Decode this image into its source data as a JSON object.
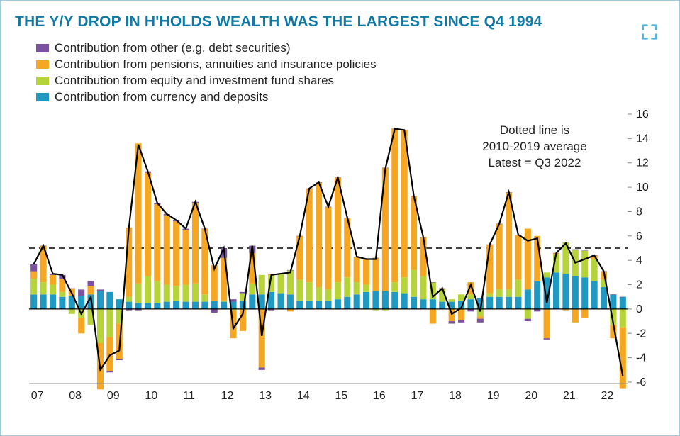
{
  "title": "THE Y/Y DROP IN H'HOLDS WEALTH WAS THE LARGEST SINCE Q4 1994",
  "note_line1": "Dotted line is",
  "note_line2": "2010-2019 average",
  "note_line3": "Latest = Q3 2022",
  "legend": {
    "other": {
      "label": "Contribution from other (e.g. debt securities)",
      "color": "#7a529f"
    },
    "pensions": {
      "label": "Contribution from pensions, annuities and insurance policies",
      "color": "#f5a623"
    },
    "equity": {
      "label": "Contribution from equity and investment fund shares",
      "color": "#b6d43a"
    },
    "currency": {
      "label": "Contribution from currency and deposits",
      "color": "#1f99c2"
    }
  },
  "chart": {
    "type": "stacked-bar-with-line",
    "background_color": "#ffffff",
    "border_color": "#9ecde0",
    "text_color": "#222222",
    "title_color": "#0f7aa6",
    "title_fontsize": 21,
    "axis_fontsize": 16,
    "line_color": "#000000",
    "line_width": 2.2,
    "ref_line_color": "#000000",
    "ref_line_dash": "8 6",
    "baseline_color": "#000000",
    "ylim": [
      -6,
      16
    ],
    "ytick_step": 2,
    "xlabels": [
      "07",
      "08",
      "09",
      "10",
      "11",
      "12",
      "13",
      "14",
      "15",
      "16",
      "17",
      "18",
      "19",
      "20",
      "21",
      "22"
    ],
    "ref_value": 5.0,
    "bar_width_ratio": 0.68,
    "periods": [
      "07Q1",
      "07Q2",
      "07Q3",
      "07Q4",
      "08Q1",
      "08Q2",
      "08Q3",
      "08Q4",
      "09Q1",
      "09Q2",
      "09Q3",
      "09Q4",
      "10Q1",
      "10Q2",
      "10Q3",
      "10Q4",
      "11Q1",
      "11Q2",
      "11Q3",
      "11Q4",
      "12Q1",
      "12Q2",
      "12Q3",
      "12Q4",
      "13Q1",
      "13Q2",
      "13Q3",
      "13Q4",
      "14Q1",
      "14Q2",
      "14Q3",
      "14Q4",
      "15Q1",
      "15Q2",
      "15Q3",
      "15Q4",
      "16Q1",
      "16Q2",
      "16Q3",
      "16Q4",
      "17Q1",
      "17Q2",
      "17Q3",
      "17Q4",
      "18Q1",
      "18Q2",
      "18Q3",
      "18Q4",
      "19Q1",
      "19Q2",
      "19Q3",
      "19Q4",
      "20Q1",
      "20Q2",
      "20Q3",
      "20Q4",
      "21Q1",
      "21Q2",
      "21Q3",
      "21Q4",
      "22Q1",
      "22Q2",
      "22Q3"
    ],
    "series": {
      "currency": [
        1.2,
        1.2,
        1.2,
        1.0,
        1.1,
        1.1,
        1.2,
        1.5,
        1.4,
        0.8,
        0.6,
        0.5,
        0.5,
        0.5,
        0.6,
        0.7,
        0.6,
        0.6,
        0.6,
        0.7,
        0.6,
        0.6,
        0.7,
        1.2,
        1.2,
        1.4,
        1.3,
        1.2,
        0.7,
        0.7,
        0.7,
        0.7,
        0.8,
        1.0,
        1.2,
        1.4,
        1.5,
        1.5,
        1.4,
        1.3,
        1.0,
        0.8,
        0.8,
        0.6,
        0.6,
        0.7,
        0.8,
        0.9,
        1.0,
        1.0,
        1.0,
        1.0,
        1.6,
        2.3,
        2.6,
        3.0,
        2.9,
        2.7,
        2.6,
        2.3,
        1.8,
        1.2,
        1.0
      ],
      "equity": [
        1.3,
        1.0,
        0.8,
        0.4,
        -0.4,
        -0.7,
        -1.3,
        -2.8,
        -2.3,
        -1.2,
        0.4,
        1.6,
        2.2,
        1.8,
        1.4,
        1.2,
        1.4,
        1.5,
        0.6,
        0.0,
        0.1,
        -0.1,
        0.6,
        0.9,
        1.6,
        1.4,
        1.6,
        2.0,
        1.7,
        1.5,
        1.1,
        0.9,
        1.4,
        1.6,
        1.0,
        0.6,
        -0.1,
        -0.1,
        0.8,
        1.3,
        2.2,
        1.9,
        1.4,
        1.0,
        0.2,
        0.5,
        0.4,
        -0.6,
        0.3,
        0.6,
        0.6,
        1.4,
        -0.8,
        0.0,
        0.4,
        1.5,
        2.6,
        2.2,
        2.2,
        1.8,
        0.6,
        -1.3,
        -1.5
      ],
      "pensions": [
        0.6,
        3.0,
        0.8,
        1.1,
        0.6,
        -1.3,
        0.7,
        -3.8,
        -2.8,
        -2.9,
        5.7,
        11.5,
        8.5,
        6.3,
        5.7,
        5.3,
        4.5,
        6.6,
        5.4,
        2.9,
        3.5,
        -2.3,
        -1.8,
        2.5,
        -4.8,
        0.1,
        0.0,
        -0.2,
        3.6,
        7.7,
        8.6,
        6.8,
        8.6,
        4.9,
        2.1,
        2.1,
        2.7,
        10.1,
        12.6,
        12.1,
        6.1,
        3.2,
        -1.2,
        0.1,
        -1.0,
        -0.9,
        1.0,
        -0.2,
        4.0,
        5.4,
        8.0,
        3.7,
        5.0,
        3.7,
        -2.4,
        0.1,
        -0.1,
        -1.1,
        -0.7,
        0.3,
        0.7,
        -1.1,
        -5.0
      ],
      "other": [
        0.6,
        0.0,
        0.1,
        0.3,
        0.0,
        0.5,
        0.4,
        0.1,
        -0.1,
        -0.1,
        -0.1,
        -0.1,
        0.1,
        0.1,
        0.1,
        0.1,
        0.1,
        0.1,
        0.0,
        -0.3,
        0.8,
        0.2,
        0.1,
        0.6,
        -0.2,
        -0.1,
        0.0,
        0.0,
        0.0,
        0.0,
        0.0,
        0.0,
        0.0,
        0.0,
        0.0,
        0.0,
        0.0,
        0.0,
        0.0,
        0.0,
        0.0,
        0.0,
        0.0,
        0.0,
        -0.2,
        -0.2,
        -0.2,
        -0.3,
        0.0,
        0.0,
        0.0,
        0.0,
        -0.2,
        -0.2,
        -0.1,
        0.0,
        0.0,
        0.0,
        0.0,
        0.0,
        0.0,
        0.0,
        0.0
      ]
    }
  },
  "icon_color": "#4fb3d9"
}
